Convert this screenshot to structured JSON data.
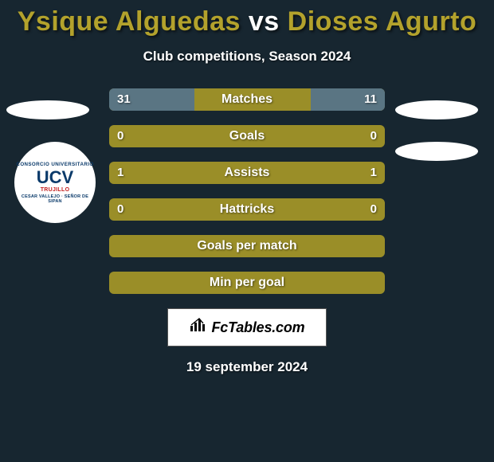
{
  "title": {
    "player_left": "Ysique Alguedas",
    "separator": "vs",
    "player_right": "Dioses Agurto",
    "color_left": "#b3a22c",
    "color_sep": "#ffffff",
    "color_right": "#b3a22c"
  },
  "subtitle": "Club competitions, Season 2024",
  "background_color": "#172630",
  "bar_track_color": "#9a8e28",
  "bar_fill_color": "#5a7583",
  "text_color": "#ffffff",
  "rows": [
    {
      "label": "Matches",
      "left": "31",
      "right": "11",
      "left_pct": 31,
      "right_pct": 27
    },
    {
      "label": "Goals",
      "left": "0",
      "right": "0",
      "left_pct": 0,
      "right_pct": 0
    },
    {
      "label": "Assists",
      "left": "1",
      "right": "1",
      "left_pct": 0,
      "right_pct": 0
    },
    {
      "label": "Hattricks",
      "left": "0",
      "right": "0",
      "left_pct": 0,
      "right_pct": 0
    },
    {
      "label": "Goals per match",
      "left": "",
      "right": "",
      "left_pct": 0,
      "right_pct": 0
    },
    {
      "label": "Min per goal",
      "left": "",
      "right": "",
      "left_pct": 0,
      "right_pct": 0
    }
  ],
  "club_badge": {
    "top_arc": "CONSORCIO UNIVERSITARIO",
    "main": "UCV",
    "sub": "TRUJILLO",
    "bottom_arc": "CESAR VALLEJO · SEÑOR DE SIPAN",
    "main_color": "#0a3a6a",
    "sub_color": "#c42020"
  },
  "brand": {
    "text": "FcTables.com"
  },
  "date_footer": "19 september 2024"
}
